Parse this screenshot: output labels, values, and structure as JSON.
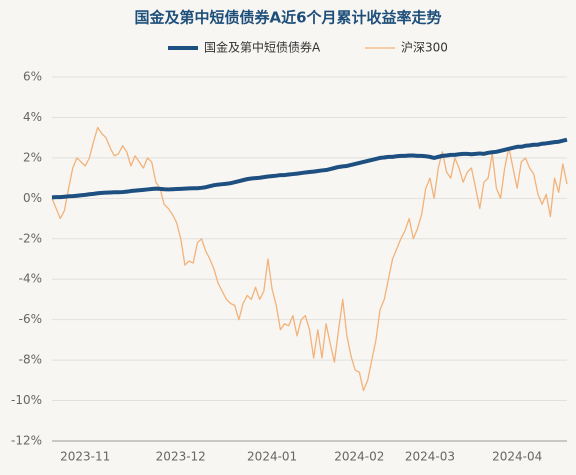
{
  "chart_data": {
    "type": "line",
    "title": "国金及第中短债债券A近6个月累计收益率走势",
    "categories": [
      null,
      null,
      null,
      null,
      null,
      null,
      null,
      null,
      "2023-11",
      null,
      null,
      null,
      null,
      null,
      null,
      null,
      null,
      null,
      null,
      null,
      null,
      null,
      null,
      null,
      null,
      null,
      null,
      null,
      null,
      null,
      null,
      "2023-12",
      null,
      null,
      null,
      null,
      null,
      null,
      null,
      null,
      null,
      null,
      null,
      null,
      null,
      null,
      null,
      null,
      null,
      null,
      null,
      null,
      null,
      "2024-01",
      null,
      null,
      null,
      null,
      null,
      null,
      null,
      null,
      null,
      null,
      null,
      null,
      null,
      null,
      null,
      null,
      null,
      null,
      null,
      null,
      "2024-02",
      null,
      null,
      null,
      null,
      null,
      null,
      null,
      null,
      null,
      null,
      null,
      null,
      null,
      null,
      null,
      null,
      "2024-03",
      null,
      null,
      null,
      null,
      null,
      null,
      null,
      null,
      null,
      null,
      null,
      null,
      null,
      null,
      null,
      null,
      null,
      null,
      null,
      null,
      "2024-04",
      null,
      null,
      null,
      null,
      null,
      null,
      null,
      null,
      null,
      null,
      null,
      null
    ],
    "series": [
      {
        "name": "国金及第中短债债券A",
        "color": "#1d4f80",
        "width": 4,
        "values": [
          0.05,
          0.06,
          0.06,
          0.08,
          0.1,
          0.11,
          0.13,
          0.15,
          0.17,
          0.2,
          0.22,
          0.25,
          0.27,
          0.28,
          0.29,
          0.3,
          0.3,
          0.31,
          0.33,
          0.36,
          0.38,
          0.4,
          0.42,
          0.44,
          0.46,
          0.48,
          0.47,
          0.45,
          0.44,
          0.45,
          0.46,
          0.47,
          0.48,
          0.49,
          0.5,
          0.5,
          0.52,
          0.55,
          0.6,
          0.65,
          0.68,
          0.7,
          0.72,
          0.75,
          0.8,
          0.85,
          0.9,
          0.95,
          0.98,
          1.0,
          1.02,
          1.05,
          1.08,
          1.1,
          1.12,
          1.15,
          1.15,
          1.18,
          1.2,
          1.22,
          1.25,
          1.28,
          1.3,
          1.32,
          1.35,
          1.38,
          1.4,
          1.45,
          1.5,
          1.55,
          1.58,
          1.6,
          1.65,
          1.7,
          1.75,
          1.8,
          1.85,
          1.9,
          1.95,
          2.0,
          2.02,
          2.05,
          2.05,
          2.08,
          2.1,
          2.1,
          2.12,
          2.12,
          2.1,
          2.1,
          2.08,
          2.05,
          2.0,
          2.05,
          2.1,
          2.12,
          2.15,
          2.15,
          2.18,
          2.2,
          2.2,
          2.18,
          2.2,
          2.22,
          2.2,
          2.25,
          2.28,
          2.3,
          2.35,
          2.4,
          2.45,
          2.5,
          2.55,
          2.55,
          2.6,
          2.62,
          2.65,
          2.65,
          2.7,
          2.72,
          2.75,
          2.78,
          2.8,
          2.85,
          2.9
        ]
      },
      {
        "name": "沪深300",
        "color": "#f2b27a",
        "width": 1.3,
        "values": [
          0,
          -0.5,
          -1,
          -0.6,
          0.5,
          1.5,
          2,
          1.8,
          1.6,
          2,
          2.8,
          3.5,
          3.2,
          3,
          2.5,
          2.1,
          2.2,
          2.6,
          2.3,
          1.6,
          2.1,
          1.8,
          1.5,
          2,
          1.8,
          0.8,
          0.5,
          -0.3,
          -0.5,
          -0.8,
          -1.2,
          -2,
          -3.3,
          -3.1,
          -3.2,
          -2.2,
          -2,
          -2.6,
          -3,
          -3.5,
          -4.2,
          -4.6,
          -5,
          -5.2,
          -5.3,
          -6,
          -5.2,
          -4.8,
          -5,
          -4.4,
          -5,
          -4.6,
          -3,
          -4.5,
          -5.3,
          -6.5,
          -6.2,
          -6.3,
          -5.8,
          -6.8,
          -6,
          -5.8,
          -6.5,
          -7.9,
          -6.5,
          -7.9,
          -6.2,
          -7.2,
          -8.1,
          -6.5,
          -5,
          -6.8,
          -7.8,
          -8.5,
          -8.6,
          -9.5,
          -9,
          -8,
          -7,
          -5.5,
          -5,
          -4,
          -3,
          -2.5,
          -2,
          -1.6,
          -1,
          -2,
          -1.5,
          -0.8,
          0.5,
          1,
          0,
          1.5,
          2.3,
          1.3,
          1,
          2,
          1.5,
          0.8,
          1.3,
          1.5,
          0.5,
          -0.5,
          0.8,
          1,
          2.2,
          0.5,
          0,
          1.5,
          2.5,
          1.5,
          0.5,
          1.8,
          2,
          1.5,
          1.2,
          0.2,
          -0.3,
          0.2,
          -0.9,
          1,
          0.3,
          1.7,
          0.7
        ]
      }
    ],
    "ylim": [
      -12,
      6
    ],
    "yticks": [
      {
        "value": -12,
        "label": "-12%"
      },
      {
        "value": -10,
        "label": "-10%"
      },
      {
        "value": -8,
        "label": "-8%"
      },
      {
        "value": -6,
        "label": "-6%"
      },
      {
        "value": -4,
        "label": "-4%"
      },
      {
        "value": -2,
        "label": "-2%"
      },
      {
        "value": 0,
        "label": "0%"
      },
      {
        "value": 2,
        "label": "2%"
      },
      {
        "value": 4,
        "label": "4%"
      },
      {
        "value": 6,
        "label": "6%"
      }
    ],
    "grid": true,
    "legend": "top"
  }
}
